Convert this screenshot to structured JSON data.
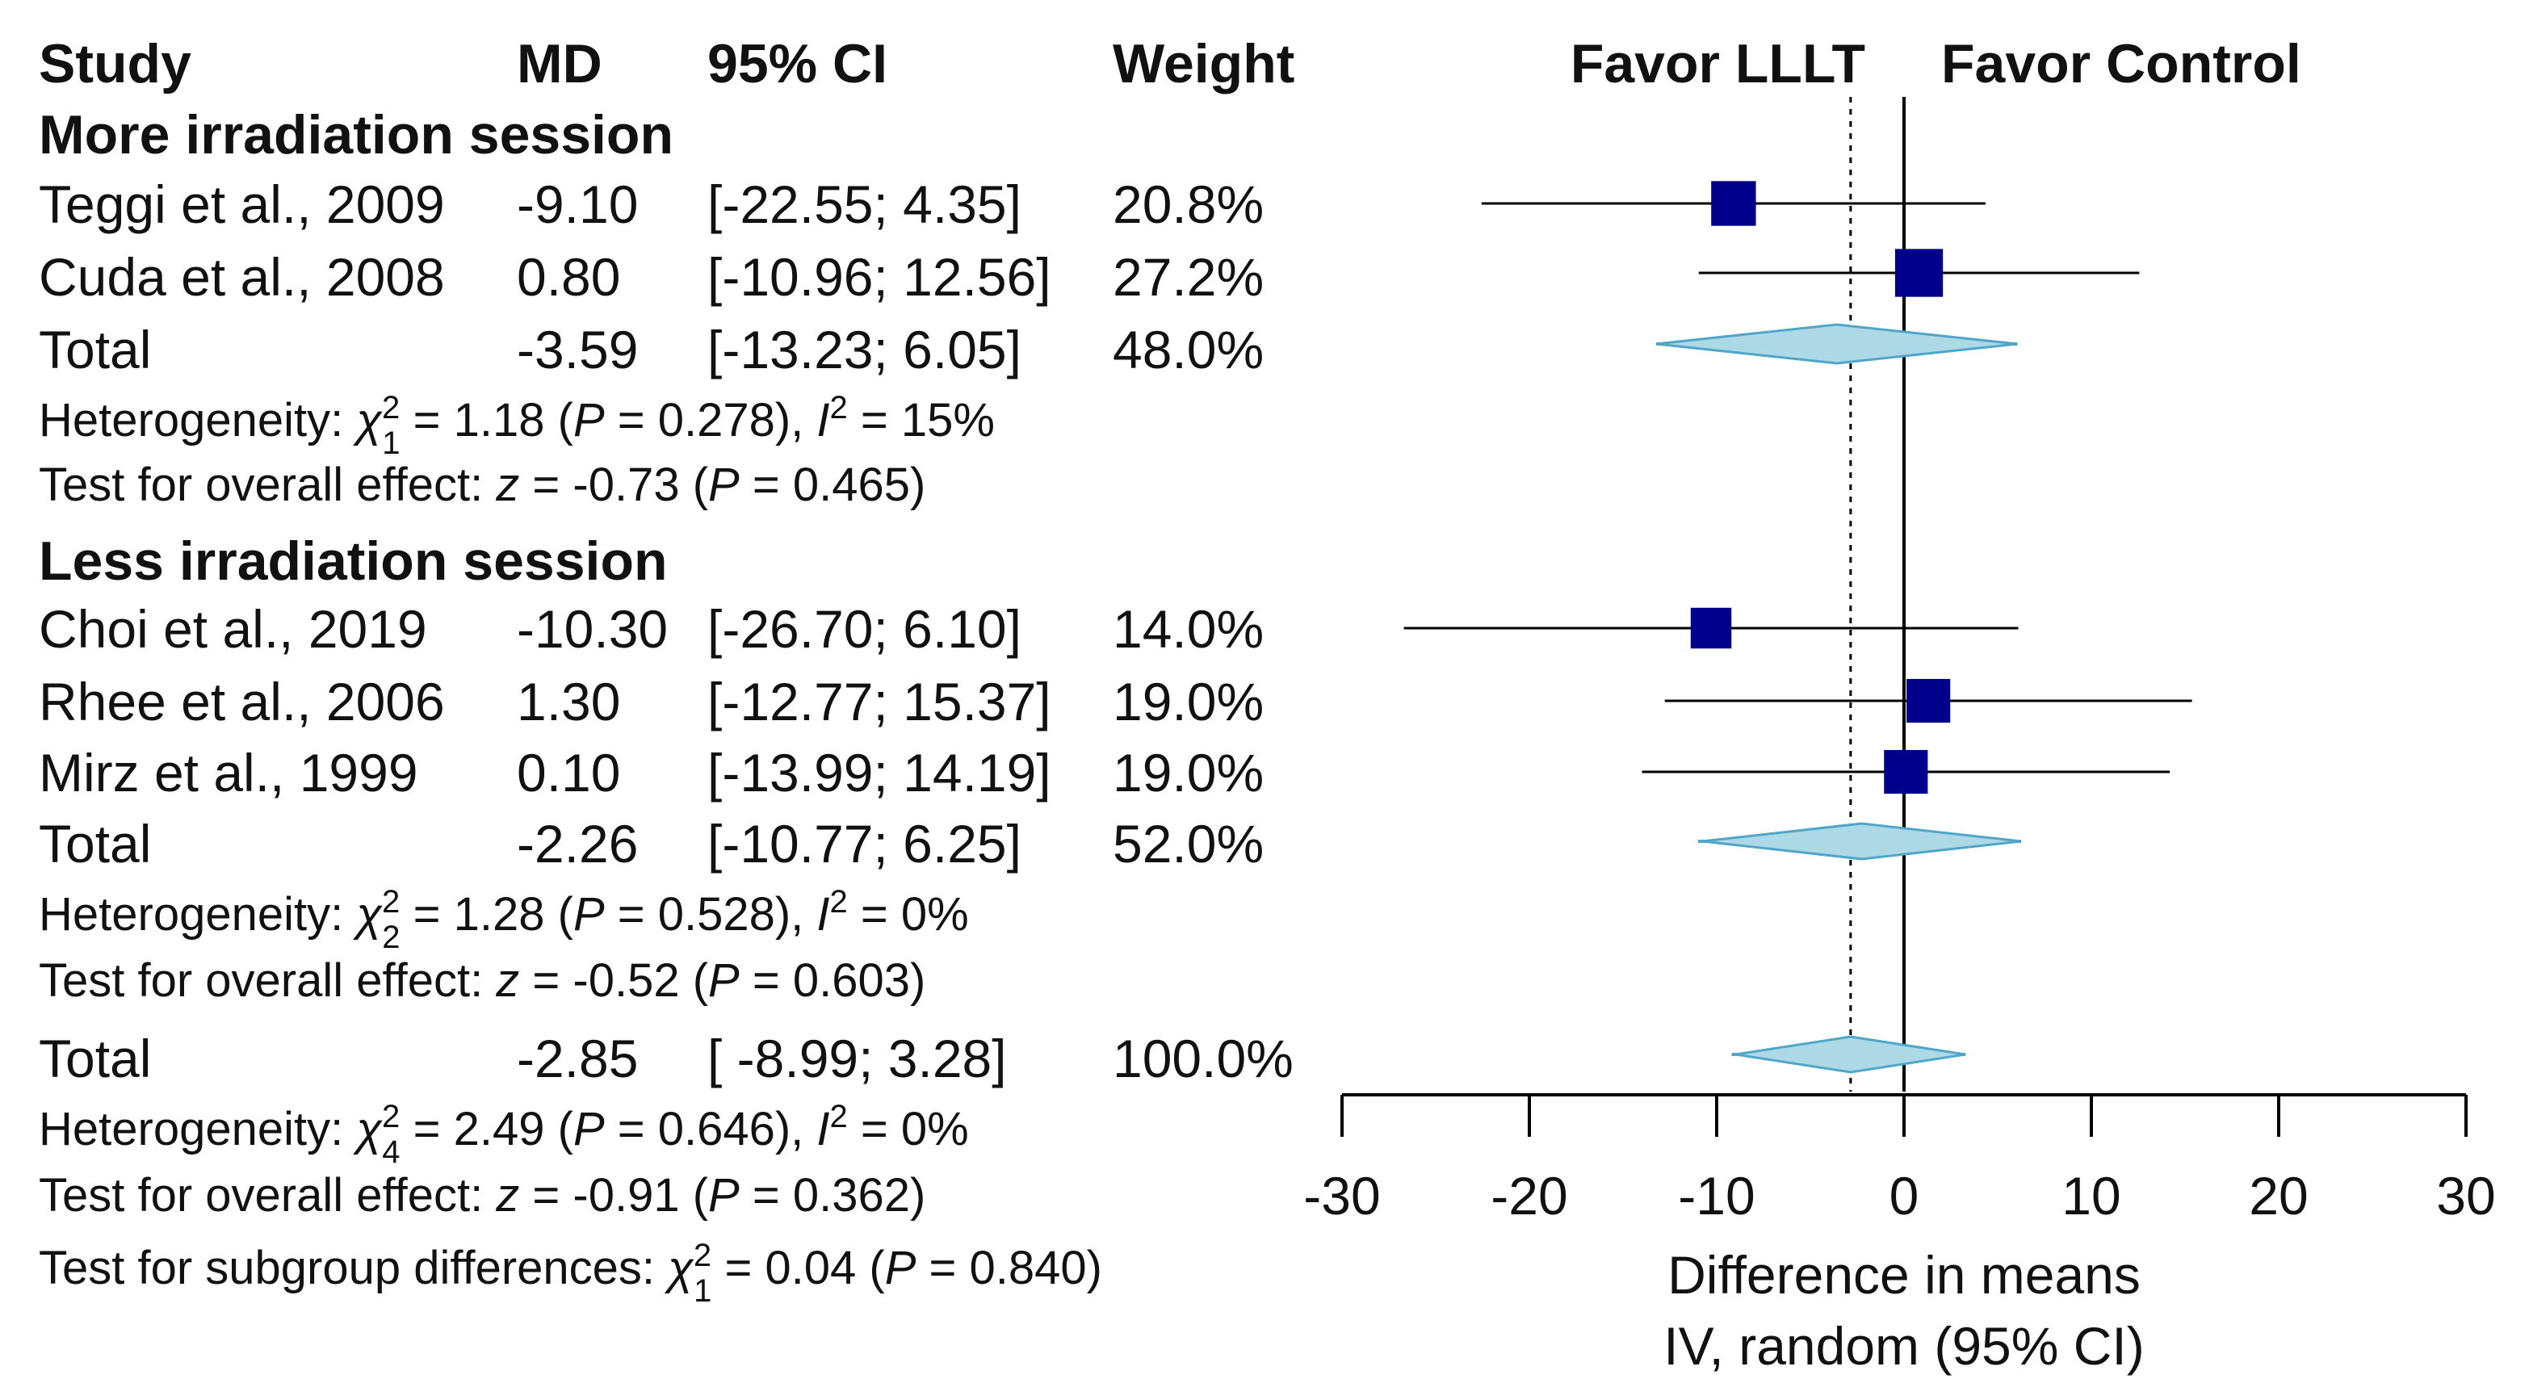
{
  "chart_data": {
    "type": "forest",
    "columns": {
      "study": "Study",
      "md": "MD",
      "ci": "95% CI",
      "weight": "Weight"
    },
    "favor_left": "Favor LLLT",
    "favor_right": "Favor Control",
    "xlabel": "Difference in means",
    "xlabel2": "IV, random (95% CI)",
    "xlim": [
      -30,
      30
    ],
    "ticks": [
      "-30",
      "-20",
      "-10",
      "0",
      "10",
      "20",
      "30"
    ],
    "tick_values": [
      -30,
      -20,
      -10,
      0,
      10,
      20,
      30
    ],
    "overall_effect_line": -2.85,
    "subgroups": [
      {
        "title": "More irradiation session",
        "studies": [
          {
            "name": "Teggi et al., 2009",
            "md_text": "-9.10",
            "ci_text": "[-22.55;  4.35]",
            "weight_text": "20.8%",
            "md": -9.1,
            "lo": -22.55,
            "hi": 4.35,
            "weight": 20.8
          },
          {
            "name": "Cuda et al., 2008",
            "md_text": "0.80",
            "ci_text": "[-10.96; 12.56]",
            "weight_text": "27.2%",
            "md": 0.8,
            "lo": -10.96,
            "hi": 12.56,
            "weight": 27.2
          }
        ],
        "total": {
          "label": "Total",
          "md_text": "-3.59",
          "ci_text": "[-13.23;  6.05]",
          "weight_text": "48.0%",
          "md": -3.59,
          "lo": -13.23,
          "hi": 6.05,
          "pi_lo": -13.23,
          "pi_hi": 6.05
        },
        "het": {
          "prefix": "Heterogeneity: ",
          "chi": "χ",
          "sup": "2",
          "sub": "1",
          "eq": " = 1.18 (",
          "p": "P",
          "pval": " = 0.278), ",
          "i": "I",
          "isup": "2",
          "ival": " = 15%"
        },
        "test": {
          "prefix": "Test for overall effect: ",
          "z": "z",
          "zval": " = -0.73 (",
          "p": "P",
          "pval": " = 0.465)"
        }
      },
      {
        "title": "Less irradiation session",
        "studies": [
          {
            "name": "Choi et al., 2019",
            "md_text": "-10.30",
            "ci_text": "[-26.70;  6.10]",
            "weight_text": "14.0%",
            "md": -10.3,
            "lo": -26.7,
            "hi": 6.1,
            "weight": 14.0
          },
          {
            "name": "Rhee et al., 2006",
            "md_text": "1.30",
            "ci_text": "[-12.77; 15.37]",
            "weight_text": "19.0%",
            "md": 1.3,
            "lo": -12.77,
            "hi": 15.37,
            "weight": 19.0
          },
          {
            "name": "Mirz et al., 1999",
            "md_text": "0.10",
            "ci_text": "[-13.99; 14.19]",
            "weight_text": "19.0%",
            "md": 0.1,
            "lo": -13.99,
            "hi": 14.19,
            "weight": 19.0
          }
        ],
        "total": {
          "label": "Total",
          "md_text": "-2.26",
          "ci_text": "[-10.77;  6.25]",
          "weight_text": "52.0%",
          "md": -2.26,
          "lo": -10.77,
          "hi": 6.25,
          "pi_lo": -11.0,
          "pi_hi": 6.25
        },
        "het": {
          "prefix": "Heterogeneity: ",
          "chi": "χ",
          "sup": "2",
          "sub": "2",
          "eq": " = 1.28 (",
          "p": "P",
          "pval": " = 0.528), ",
          "i": "I",
          "isup": "2",
          "ival": " = 0%"
        },
        "test": {
          "prefix": "Test for overall effect: ",
          "z": "z",
          "zval": " = -0.52 (",
          "p": "P",
          "pval": " = 0.603)"
        }
      }
    ],
    "overall": {
      "total": {
        "label": "Total",
        "md_text": "-2.85",
        "ci_text": "[ -8.99;  3.28]",
        "weight_text": "100.0%",
        "md": -2.85,
        "lo": -8.99,
        "hi": 3.28,
        "pi_lo": -9.2,
        "pi_hi": 3.28
      },
      "het": {
        "prefix": "Heterogeneity: ",
        "chi": "χ",
        "sup": "2",
        "sub": "4",
        "eq": " = 2.49 (",
        "p": "P",
        "pval": " = 0.646), ",
        "i": "I",
        "isup": "2",
        "ival": " = 0%"
      },
      "test": {
        "prefix": "Test for overall effect: ",
        "z": "z",
        "zval": " = -0.91 (",
        "p": "P",
        "pval": " = 0.362)"
      },
      "subgroup_test": {
        "prefix": "Test for subgroup differences: ",
        "chi": "χ",
        "sup": "2",
        "sub": "1",
        "eq": " = 0.04 (",
        "p": "P",
        "pval": " = 0.840)"
      }
    },
    "colors": {
      "square": "#00008B",
      "diamond_fill": "#ADD8E6",
      "diamond_stroke": "#4FA6C8",
      "line": "#000000"
    }
  }
}
